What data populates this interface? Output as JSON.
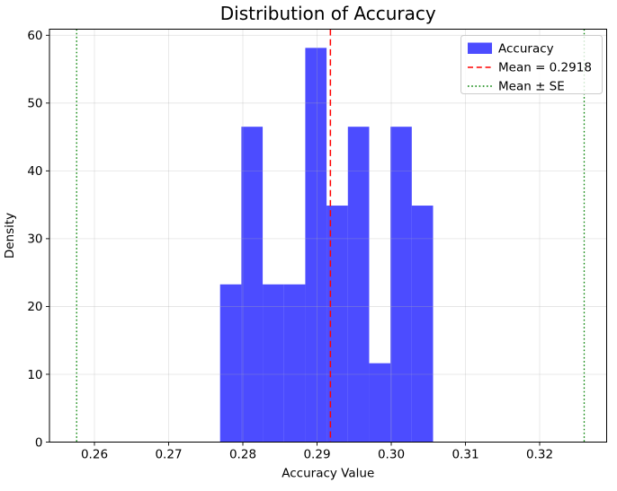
{
  "chart_data": {
    "type": "bar",
    "subtype": "histogram",
    "title": "Distribution of Accuracy",
    "xlabel": "Accuracy Value",
    "ylabel": "Density",
    "series_name": "Accuracy",
    "bin_edges": [
      0.276933,
      0.279803,
      0.282674,
      0.285544,
      0.288414,
      0.291284,
      0.294155,
      0.297025,
      0.299895,
      0.302766,
      0.305636
    ],
    "bin_densities": [
      23.26,
      46.51,
      23.26,
      23.26,
      58.14,
      34.88,
      46.51,
      11.63,
      46.51,
      34.88
    ],
    "mean": 0.2918,
    "mean_minus_se": 0.2576,
    "mean_plus_se": 0.326,
    "xticks": [
      0.26,
      0.27,
      0.28,
      0.29,
      0.3,
      0.31,
      0.32
    ],
    "xtick_labels": [
      "0.26",
      "0.27",
      "0.28",
      "0.29",
      "0.30",
      "0.31",
      "0.32"
    ],
    "yticks": [
      0,
      10,
      20,
      30,
      40,
      50,
      60
    ],
    "ytick_labels": [
      "0",
      "10",
      "20",
      "30",
      "40",
      "50",
      "60"
    ],
    "xlim": [
      0.253939,
      0.32903
    ],
    "ylim": [
      0,
      60.9
    ],
    "grid": true,
    "legend_position": "upper right",
    "colors": {
      "bar": "#0000ff",
      "bar_alpha": 0.7,
      "mean_line": "#ff0000",
      "se_line": "#008000",
      "grid": "#b0b0b0",
      "axes": "#000000",
      "legend_border": "#cccccc"
    },
    "legend": {
      "items": [
        {
          "label": "Accuracy",
          "glyph": "patch",
          "color": "#0000ff"
        },
        {
          "label": "Mean = 0.2918",
          "glyph": "dashed-line",
          "color": "#ff0000"
        },
        {
          "label": "Mean ± SE",
          "glyph": "dotted-line",
          "color": "#008000"
        }
      ]
    }
  }
}
